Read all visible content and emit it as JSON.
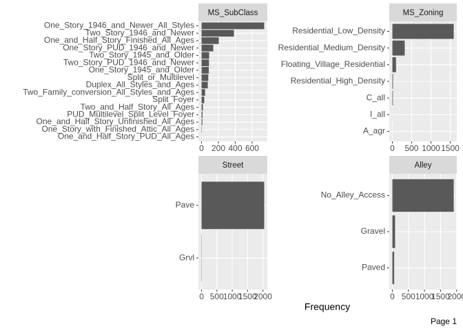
{
  "chart_data": [
    {
      "type": "bar",
      "title": "MS_SubClass",
      "categories": [
        "One_Story_1946_and_Newer_All_Styles",
        "Two_Story_1946_and_Newer",
        "One_and_Half_Story_Finished_All_Ages",
        "One_Story_PUD_1946_and_Newer",
        "Two_Story_1945_and_Older",
        "Two_Story_PUD_1946_and_Newer",
        "One_Story_1945_and_Older",
        "Split_or_Multilevel",
        "Duplex_All_Styles_and_Ages",
        "Two_Family_conversion_All_Styles_and_Ages",
        "Split_Foyer",
        "Two_and_Half_Story_All_Ages",
        "PUD_Multilevel_Split_Level_Foyer",
        "One_and_Half_Story_Unfinished_All_Ages",
        "One_Story_with_Finished_Attic_All_Ages",
        "One_and_Half_Story_PUD_All_Ages"
      ],
      "values": [
        743,
        384,
        204,
        139,
        90,
        88,
        86,
        80,
        74,
        42,
        32,
        16,
        12,
        10,
        4,
        1
      ],
      "color": "#595959",
      "xlim": [
        -37,
        780
      ],
      "xticks": [
        0,
        200,
        400,
        600
      ],
      "grid": true
    },
    {
      "type": "bar",
      "title": "MS_Zoning",
      "categories": [
        "Residential_Low_Density",
        "Residential_Medium_Density",
        "Floating_Village_Residential",
        "Residential_High_Density",
        "C_all",
        "I_all",
        "A_agr"
      ],
      "values": [
        1590,
        320,
        95,
        18,
        15,
        2,
        1
      ],
      "color": "#595959",
      "xlim": [
        -80,
        1670
      ],
      "xticks": [
        0,
        500,
        1000,
        1500
      ],
      "grid": true
    },
    {
      "type": "bar",
      "title": "Street",
      "categories": [
        "Pave",
        "Grvl"
      ],
      "values": [
        2043,
        8
      ],
      "color": "#595959",
      "xlim": [
        -102,
        2145
      ],
      "xticks": [
        0,
        500,
        1000,
        1500,
        2000
      ],
      "grid": true
    },
    {
      "type": "bar",
      "title": "Alley",
      "categories": [
        "No_Alley_Access",
        "Gravel",
        "Paved"
      ],
      "values": [
        1910,
        85,
        56
      ],
      "color": "#595959",
      "xlim": [
        -96,
        2006
      ],
      "xticks": [
        0,
        500,
        1000,
        1500,
        2000
      ],
      "grid": true
    }
  ],
  "x_label": "Frequency",
  "footer": "Page 1"
}
